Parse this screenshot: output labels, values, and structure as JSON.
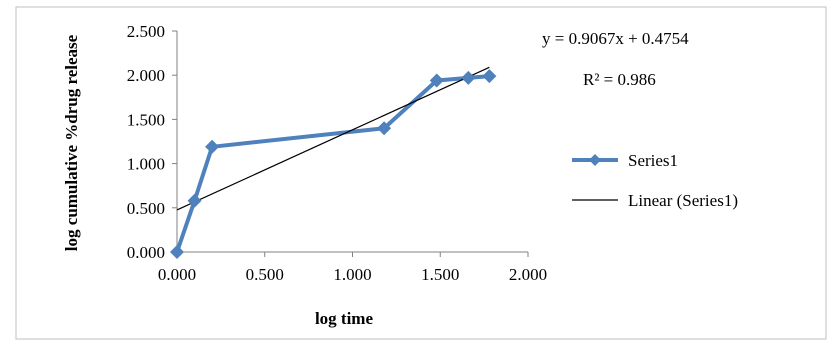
{
  "chart_data": {
    "type": "scatter",
    "xlabel": "log time",
    "ylabel": "log cumulative %drug release",
    "xlim": [
      0,
      2.0
    ],
    "ylim": [
      0,
      2.5
    ],
    "x_ticks": [
      "0.000",
      "0.500",
      "1.000",
      "1.500",
      "2.000"
    ],
    "y_ticks": [
      "0.000",
      "0.500",
      "1.000",
      "1.500",
      "2.000",
      "2.500"
    ],
    "grid": false,
    "legend_position": "right",
    "series": [
      {
        "name": "Series1",
        "color": "#4f81bd",
        "marker": "diamond",
        "x": [
          0.0,
          0.1,
          0.2,
          1.18,
          1.48,
          1.66,
          1.78
        ],
        "y": [
          0.0,
          0.58,
          1.19,
          1.4,
          1.94,
          1.97,
          1.99
        ]
      }
    ],
    "trendline": {
      "name": "Linear (Series1)",
      "color": "#000000",
      "slope": 0.9067,
      "intercept": 0.4754,
      "x_range": [
        0.0,
        1.78
      ]
    },
    "annotations": {
      "equation": "y = 0.9067x + 0.4754",
      "r_squared": "R² = 0.986"
    }
  }
}
